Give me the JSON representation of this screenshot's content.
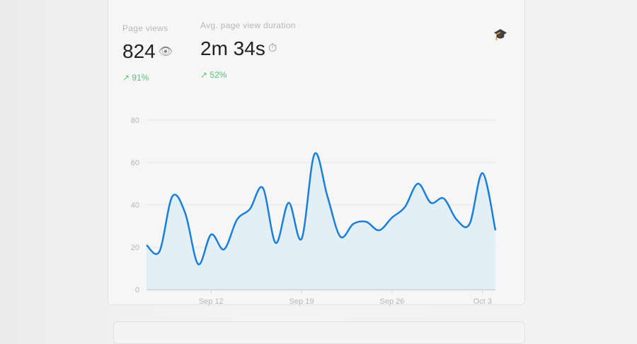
{
  "metrics": [
    {
      "label": "Page views",
      "value": "824",
      "icon": "eye-icon",
      "change": "91%"
    },
    {
      "label": "Avg. page view duration",
      "value": "2m 34s",
      "icon": "stopwatch-icon",
      "change": "52%"
    }
  ],
  "header_icon": "graduation-cap-icon",
  "colors": {
    "line": "#1a7fd9",
    "fill": "#dcecf8",
    "positive": "#5ac47a"
  },
  "chart_data": {
    "type": "area",
    "x": [
      "Sep 7",
      "Sep 8",
      "Sep 9",
      "Sep 10",
      "Sep 11",
      "Sep 12",
      "Sep 13",
      "Sep 14",
      "Sep 15",
      "Sep 16",
      "Sep 17",
      "Sep 18",
      "Sep 19",
      "Sep 20",
      "Sep 21",
      "Sep 22",
      "Sep 23",
      "Sep 24",
      "Sep 25",
      "Sep 26",
      "Sep 27",
      "Sep 28",
      "Sep 29",
      "Sep 30",
      "Oct 1",
      "Oct 2",
      "Oct 3",
      "Oct 4"
    ],
    "values": [
      21,
      18,
      44,
      36,
      12,
      26,
      19,
      33,
      38,
      48,
      22,
      41,
      24,
      64,
      44,
      25,
      31,
      32,
      28,
      34,
      39,
      50,
      41,
      43,
      33,
      31,
      55,
      28
    ],
    "xticks": [
      "Sep 12",
      "Sep 19",
      "Sep 26",
      "Oct 3"
    ],
    "yticks": [
      "0",
      "20",
      "40",
      "60",
      "80"
    ],
    "ylim": [
      0,
      80
    ],
    "grid": true
  }
}
